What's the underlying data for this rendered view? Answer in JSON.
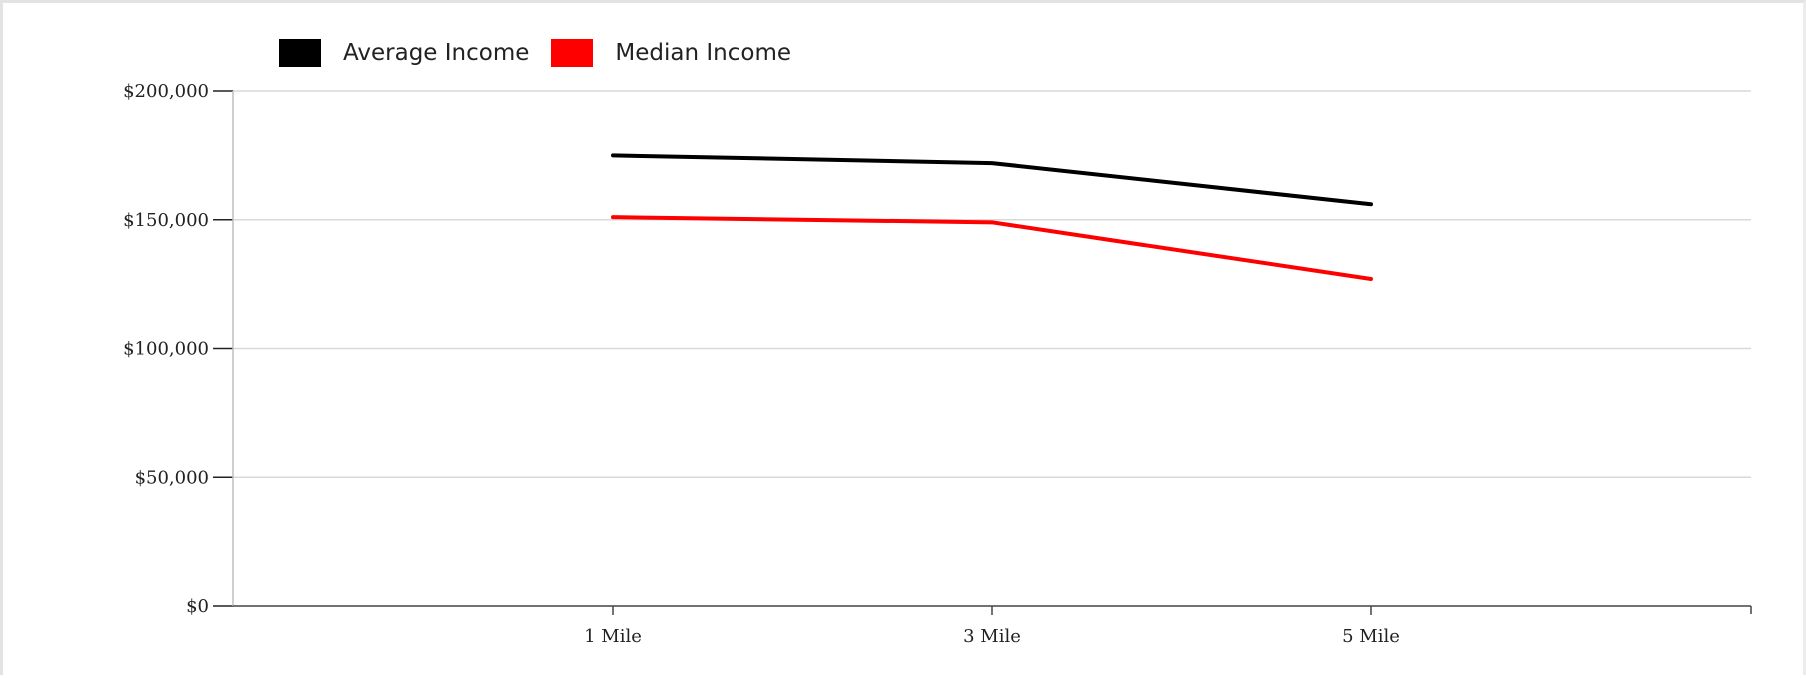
{
  "chart_data": {
    "type": "line",
    "categories": [
      "1 Mile",
      "3 Mile",
      "5 Mile"
    ],
    "series": [
      {
        "name": "Average Income",
        "color": "#000000",
        "values": [
          175000,
          172000,
          156000
        ]
      },
      {
        "name": "Median Income",
        "color": "#ff0000",
        "values": [
          151000,
          149000,
          127000
        ]
      }
    ],
    "yticks": [
      "$0",
      "$50,000",
      "$100,000",
      "$150,000",
      "$200,000"
    ],
    "ytick_values": [
      0,
      50000,
      100000,
      150000,
      200000
    ],
    "ylim": [
      0,
      200000
    ],
    "grid": true,
    "legend_position": "top-left"
  }
}
